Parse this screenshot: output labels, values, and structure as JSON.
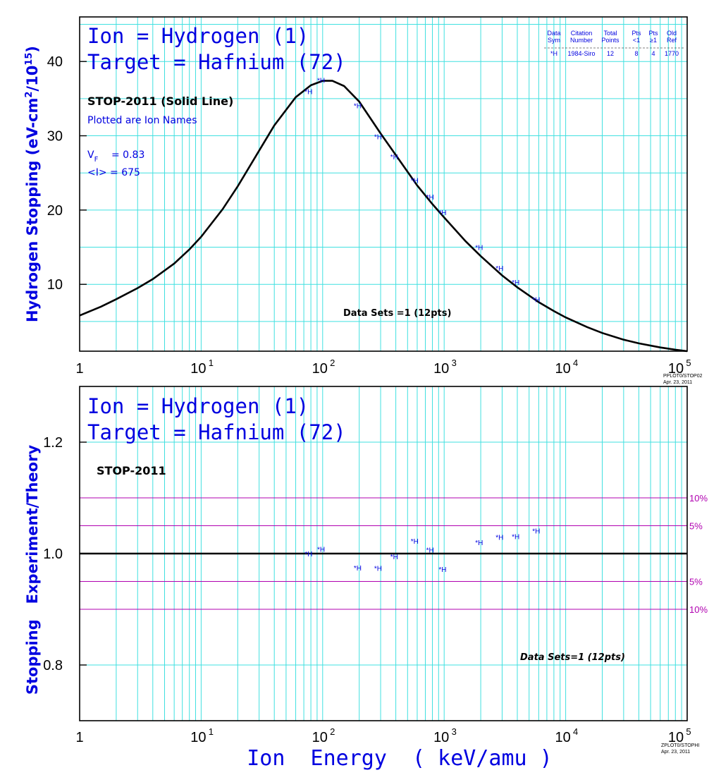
{
  "charts": {
    "top": {
      "title_line1": "Ion = Hydrogen (1)",
      "title_line2": "Target = Hafnium (72)",
      "ylabel": "Hydrogen Stopping (eV-cm²/10¹⁵)",
      "method": "STOP-2011 (Solid Line)",
      "plotted_note": "Plotted are Ion Names",
      "vf_label": "V",
      "vf_sub": "F",
      "vf_value": "= 0.83",
      "mean_i": "<I> = 675",
      "data_sets": "Data Sets =1 (12pts)",
      "stamp_line1": "PPLOT0/STOP02",
      "stamp_line2": "Apr. 23, 2011",
      "legend": {
        "header_row1": [
          "Data",
          "Citation",
          "Total",
          "Pts",
          "Pts",
          "Old"
        ],
        "header_row2": [
          "Sym",
          "Number",
          "Points",
          "<1",
          "≥1",
          "Ref"
        ],
        "row": [
          "*H",
          "1984-Siro",
          "12",
          "8",
          "4",
          "1770"
        ]
      }
    },
    "bottom": {
      "title_line1": "Ion = Hydrogen (1)",
      "title_line2": "Target = Hafnium (72)",
      "ylabel": "Stopping   Experiment/Theory",
      "method": "STOP-2011",
      "data_sets": "Data Sets=1 (12pts)",
      "stamp_line1": "ZPLOT0/STOPHI",
      "stamp_line2": "Apr. 23, 2011",
      "band_labels": [
        {
          "value": 1.1,
          "label": "10%"
        },
        {
          "value": 1.05,
          "label": "5%"
        },
        {
          "value": 0.95,
          "label": "5%"
        },
        {
          "value": 0.9,
          "label": "10%"
        }
      ]
    },
    "xlabel": "Ion  Energy  ( keV/amu )",
    "x_tick_labels": [
      {
        "value": 1,
        "base": "1",
        "exp": ""
      },
      {
        "value": 10,
        "base": "10",
        "exp": "1"
      },
      {
        "value": 100,
        "base": "10",
        "exp": "2"
      },
      {
        "value": 1000,
        "base": "10",
        "exp": "3"
      },
      {
        "value": 10000,
        "base": "10",
        "exp": "4"
      },
      {
        "value": 100000,
        "base": "10",
        "exp": "5"
      }
    ]
  },
  "colors": {
    "grid": "#40e0e0",
    "band": "#b000b0",
    "points": "#0000e0",
    "curve": "#000000"
  },
  "chart_data": [
    {
      "type": "line",
      "x_scale": "log",
      "xlim": [
        1,
        100000
      ],
      "ylim": [
        1,
        46
      ],
      "yticks": [
        10,
        20,
        30,
        40
      ],
      "grid": true,
      "series": [
        {
          "kind": "curve",
          "x": [
            1,
            1.5,
            2,
            3,
            4,
            6,
            8,
            10,
            15,
            20,
            30,
            40,
            60,
            80,
            100,
            120,
            150,
            200,
            300,
            400,
            600,
            800,
            1000,
            1500,
            2000,
            3000,
            4000,
            6000,
            8000,
            10000,
            15000,
            20000,
            30000,
            40000,
            60000,
            80000,
            100000
          ],
          "y": [
            5.8,
            7.0,
            8.0,
            9.5,
            10.7,
            12.8,
            14.7,
            16.4,
            20.1,
            23.2,
            28.0,
            31.4,
            35.2,
            36.8,
            37.4,
            37.4,
            36.7,
            34.6,
            30.3,
            27.4,
            23.3,
            20.8,
            19.0,
            15.8,
            13.8,
            11.2,
            9.6,
            7.6,
            6.4,
            5.55,
            4.25,
            3.45,
            2.55,
            2.05,
            1.5,
            1.2,
            1.0
          ]
        },
        {
          "kind": "points",
          "name": "*H",
          "x": [
            75,
            95,
            190,
            280,
            380,
            560,
            750,
            950,
            1900,
            2800,
            3800,
            5600
          ],
          "y": [
            36.0,
            37.5,
            34.1,
            29.9,
            27.2,
            24.0,
            21.8,
            19.7,
            15.0,
            12.2,
            10.3,
            8.0
          ]
        }
      ]
    },
    {
      "type": "scatter",
      "x_scale": "log",
      "xlim": [
        1,
        100000
      ],
      "ylim": [
        0.7,
        1.3
      ],
      "yticks": [
        0.8,
        1.0,
        1.2
      ],
      "reference_line": 1.0,
      "grid": true,
      "series": [
        {
          "kind": "points",
          "name": "*H",
          "x": [
            75,
            95,
            190,
            280,
            380,
            560,
            750,
            950,
            1900,
            2800,
            3800,
            5600
          ],
          "y": [
            1.0,
            1.008,
            0.975,
            0.974,
            0.995,
            1.023,
            1.007,
            0.972,
            1.02,
            1.03,
            1.031,
            1.041
          ]
        }
      ]
    }
  ]
}
